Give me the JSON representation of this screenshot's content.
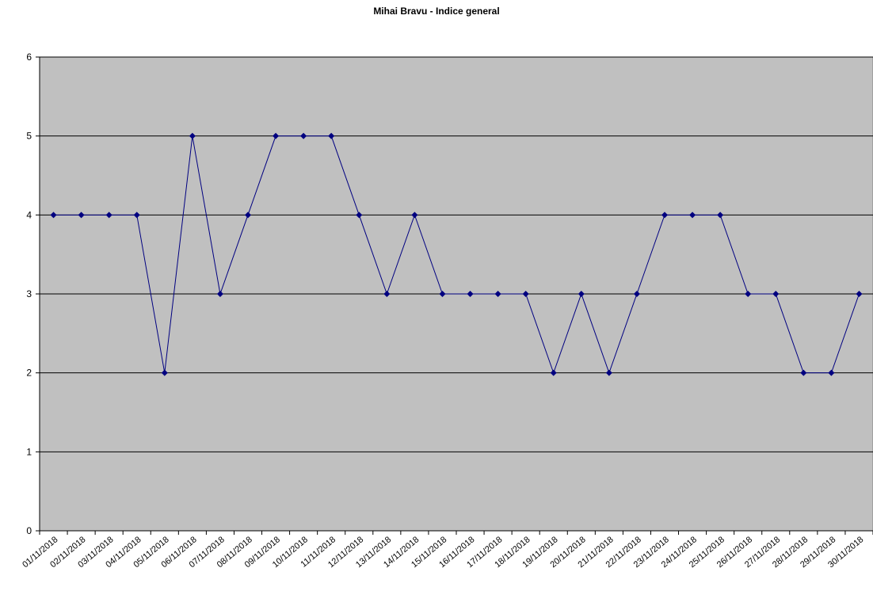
{
  "chart_data": {
    "type": "line",
    "title": "Mihai Bravu - Indice general",
    "xlabel": "",
    "ylabel": "",
    "ylim": [
      0,
      6
    ],
    "yticks": [
      "0",
      "1",
      "2",
      "3",
      "4",
      "5",
      "6"
    ],
    "grid": true,
    "legend": "none",
    "categories": [
      "01/11/2018",
      "02/11/2018",
      "03/11/2018",
      "04/11/2018",
      "05/11/2018",
      "06/11/2018",
      "07/11/2018",
      "08/11/2018",
      "09/11/2018",
      "10/11/2018",
      "11/11/2018",
      "12/11/2018",
      "13/11/2018",
      "14/11/2018",
      "15/11/2018",
      "16/11/2018",
      "17/11/2018",
      "18/11/2018",
      "19/11/2018",
      "20/11/2018",
      "21/11/2018",
      "22/11/2018",
      "23/11/2018",
      "24/11/2018",
      "25/11/2018",
      "26/11/2018",
      "27/11/2018",
      "28/11/2018",
      "29/11/2018",
      "30/11/2018"
    ],
    "series": [
      {
        "values": [
          4,
          4,
          4,
          4,
          2,
          5,
          3,
          4,
          5,
          5,
          5,
          4,
          3,
          4,
          3,
          3,
          3,
          3,
          2,
          3,
          2,
          3,
          4,
          4,
          4,
          3,
          3,
          2,
          2,
          3
        ],
        "color": "#000080"
      }
    ],
    "plot_background": "#C0C0C0",
    "gridline_color": "#000000"
  }
}
